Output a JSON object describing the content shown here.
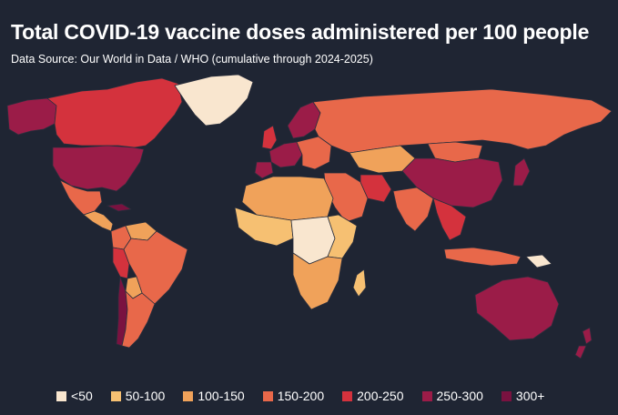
{
  "title": "Total COVID-19 vaccine doses administered per 100 people",
  "subtitle": "Data Source: Our World in Data / WHO (cumulative through 2024-2025)",
  "colors": {
    "background": "#1f2533",
    "ocean": "#1f2533",
    "border": "#2a2f3d",
    "lt50": "#f9e6cf",
    "b50_100": "#f6c072",
    "b100_150": "#f0a25a",
    "b150_200": "#e8684a",
    "b200_250": "#d4323d",
    "b250_300": "#9b1c48",
    "b300plus": "#7a1240"
  },
  "legend": [
    {
      "label": "<50",
      "color": "#f9e6cf"
    },
    {
      "label": "50-100",
      "color": "#f6c072"
    },
    {
      "label": "100-150",
      "color": "#f0a25a"
    },
    {
      "label": "150-200",
      "color": "#e8684a"
    },
    {
      "label": "200-250",
      "color": "#d4323d"
    },
    {
      "label": "250-300",
      "color": "#9b1c48"
    },
    {
      "label": "300+",
      "color": "#7a1240"
    }
  ],
  "regions": [
    {
      "name": "alaska",
      "bin": "b250_300"
    },
    {
      "name": "canada",
      "bin": "b200_250"
    },
    {
      "name": "usa",
      "bin": "b250_300"
    },
    {
      "name": "mexico",
      "bin": "b150_200"
    },
    {
      "name": "central-america",
      "bin": "b100_150"
    },
    {
      "name": "cuba",
      "bin": "b300plus"
    },
    {
      "name": "greenland",
      "bin": "lt50"
    },
    {
      "name": "colombia",
      "bin": "b150_200"
    },
    {
      "name": "venezuela",
      "bin": "b100_150"
    },
    {
      "name": "brazil",
      "bin": "b150_200"
    },
    {
      "name": "peru",
      "bin": "b200_250"
    },
    {
      "name": "bolivia",
      "bin": "b100_150"
    },
    {
      "name": "argentina",
      "bin": "b150_200"
    },
    {
      "name": "chile",
      "bin": "b300plus"
    },
    {
      "name": "uk",
      "bin": "b200_250"
    },
    {
      "name": "scandinavia",
      "bin": "b250_300"
    },
    {
      "name": "western-europe",
      "bin": "b250_300"
    },
    {
      "name": "iberia",
      "bin": "b250_300"
    },
    {
      "name": "eastern-europe",
      "bin": "b150_200"
    },
    {
      "name": "russia",
      "bin": "b150_200"
    },
    {
      "name": "kazakhstan",
      "bin": "b100_150"
    },
    {
      "name": "mongolia",
      "bin": "b150_200"
    },
    {
      "name": "china",
      "bin": "b250_300"
    },
    {
      "name": "japan",
      "bin": "b250_300"
    },
    {
      "name": "middle-east",
      "bin": "b150_200"
    },
    {
      "name": "iran",
      "bin": "b200_250"
    },
    {
      "name": "india",
      "bin": "b150_200"
    },
    {
      "name": "southeast-asia",
      "bin": "b200_250"
    },
    {
      "name": "indonesia",
      "bin": "b150_200"
    },
    {
      "name": "north-africa",
      "bin": "b100_150"
    },
    {
      "name": "west-africa",
      "bin": "b50_100"
    },
    {
      "name": "central-africa",
      "bin": "lt50"
    },
    {
      "name": "east-africa",
      "bin": "b50_100"
    },
    {
      "name": "southern-africa",
      "bin": "b100_150"
    },
    {
      "name": "madagascar",
      "bin": "b50_100"
    },
    {
      "name": "australia",
      "bin": "b250_300"
    },
    {
      "name": "new-zealand",
      "bin": "b250_300"
    },
    {
      "name": "png",
      "bin": "lt50"
    }
  ]
}
